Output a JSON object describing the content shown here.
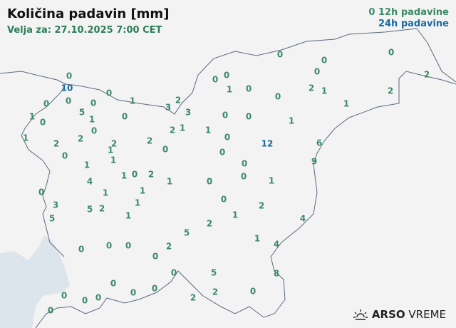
{
  "title": "Količina padavin [mm]",
  "subtitle": "Velja za: 27.10.2025 7:00 CET",
  "legend": {
    "item_12h": "12h padavine",
    "item_24h": "24h padavine",
    "sample_value": "0"
  },
  "logo": {
    "name": "ARSO",
    "suffix": "VREME",
    "icon": "sun-icon"
  },
  "colors": {
    "12h": "#3c8a6a",
    "24h": "#1b6aa0",
    "land": "#f3f3f3",
    "sea": "#dde5ec",
    "border": "#5a6a80"
  },
  "stations": [
    {
      "v": "0",
      "t": "12h"
    },
    {
      "v": "10",
      "t": "24h"
    },
    {
      "v": "0",
      "t": "12h"
    },
    {
      "v": "0",
      "t": "12h"
    },
    {
      "v": "0",
      "t": "12h"
    },
    {
      "v": "0",
      "t": "12h"
    },
    {
      "v": "1",
      "t": "12h"
    },
    {
      "v": "3",
      "t": "12h"
    },
    {
      "v": "2",
      "t": "12h"
    },
    {
      "v": "3",
      "t": "12h"
    },
    {
      "v": "1",
      "t": "12h"
    },
    {
      "v": "0",
      "t": "12h"
    },
    {
      "v": "5",
      "t": "12h"
    },
    {
      "v": "1",
      "t": "12h"
    },
    {
      "v": "0",
      "t": "12h"
    },
    {
      "v": "0",
      "t": "12h"
    },
    {
      "v": "1",
      "t": "12h"
    },
    {
      "v": "2",
      "t": "12h"
    },
    {
      "v": "2",
      "t": "12h"
    },
    {
      "v": "2",
      "t": "12h"
    },
    {
      "v": "1",
      "t": "12h"
    },
    {
      "v": "1",
      "t": "12h"
    },
    {
      "v": "0",
      "t": "12h"
    },
    {
      "v": "2",
      "t": "12h"
    },
    {
      "v": "0",
      "t": "12h"
    },
    {
      "v": "2",
      "t": "12h"
    },
    {
      "v": "1",
      "t": "12h"
    },
    {
      "v": "1",
      "t": "12h"
    },
    {
      "v": "1",
      "t": "12h"
    },
    {
      "v": "4",
      "t": "12h"
    },
    {
      "v": "1",
      "t": "12h"
    },
    {
      "v": "1",
      "t": "12h"
    },
    {
      "v": "0",
      "t": "12h"
    },
    {
      "v": "2",
      "t": "12h"
    },
    {
      "v": "1",
      "t": "12h"
    },
    {
      "v": "0",
      "t": "12h"
    },
    {
      "v": "3",
      "t": "12h"
    },
    {
      "v": "5",
      "t": "12h"
    },
    {
      "v": "5",
      "t": "12h"
    },
    {
      "v": "2",
      "t": "12h"
    },
    {
      "v": "1",
      "t": "12h"
    },
    {
      "v": "1",
      "t": "12h"
    },
    {
      "v": "0",
      "t": "12h"
    },
    {
      "v": "0",
      "t": "12h"
    },
    {
      "v": "0",
      "t": "12h"
    },
    {
      "v": "0",
      "t": "12h"
    },
    {
      "v": "2",
      "t": "12h"
    },
    {
      "v": "5",
      "t": "12h"
    },
    {
      "v": "2",
      "t": "12h"
    },
    {
      "v": "0",
      "t": "12h"
    },
    {
      "v": "2",
      "t": "12h"
    },
    {
      "v": "1",
      "t": "12h"
    },
    {
      "v": "1",
      "t": "12h"
    },
    {
      "v": "4",
      "t": "12h"
    },
    {
      "v": "0",
      "t": "12h"
    },
    {
      "v": "5",
      "t": "12h"
    },
    {
      "v": "8",
      "t": "12h"
    },
    {
      "v": "0",
      "t": "12h"
    },
    {
      "v": "0",
      "t": "12h"
    },
    {
      "v": "0",
      "t": "12h"
    },
    {
      "v": "0",
      "t": "12h"
    },
    {
      "v": "0",
      "t": "12h"
    },
    {
      "v": "0",
      "t": "12h"
    },
    {
      "v": "2",
      "t": "12h"
    },
    {
      "v": "2",
      "t": "12h"
    },
    {
      "v": "0",
      "t": "12h"
    },
    {
      "v": "0",
      "t": "12h"
    },
    {
      "v": "4",
      "t": "12h"
    },
    {
      "v": "0",
      "t": "12h"
    },
    {
      "v": "0",
      "t": "12h"
    },
    {
      "v": "0",
      "t": "12h"
    },
    {
      "v": "0",
      "t": "12h"
    },
    {
      "v": "0",
      "t": "12h"
    },
    {
      "v": "1",
      "t": "12h"
    },
    {
      "v": "0",
      "t": "12h"
    },
    {
      "v": "2",
      "t": "12h"
    },
    {
      "v": "1",
      "t": "12h"
    },
    {
      "v": "0",
      "t": "12h"
    },
    {
      "v": "1",
      "t": "12h"
    },
    {
      "v": "0",
      "t": "12h"
    },
    {
      "v": "0",
      "t": "12h"
    },
    {
      "v": "1",
      "t": "12h"
    },
    {
      "v": "0",
      "t": "12h"
    },
    {
      "v": "12",
      "t": "24h"
    },
    {
      "v": "0",
      "t": "12h"
    },
    {
      "v": "6",
      "t": "12h"
    },
    {
      "v": "9",
      "t": "12h"
    },
    {
      "v": "0",
      "t": "12h"
    },
    {
      "v": "0",
      "t": "12h"
    },
    {
      "v": "1",
      "t": "12h"
    },
    {
      "v": "0",
      "t": "12h"
    },
    {
      "v": "0",
      "t": "12h"
    },
    {
      "v": "2",
      "t": "12h"
    },
    {
      "v": "2",
      "t": "12h"
    },
    {
      "v": "1",
      "t": "12h"
    }
  ]
}
